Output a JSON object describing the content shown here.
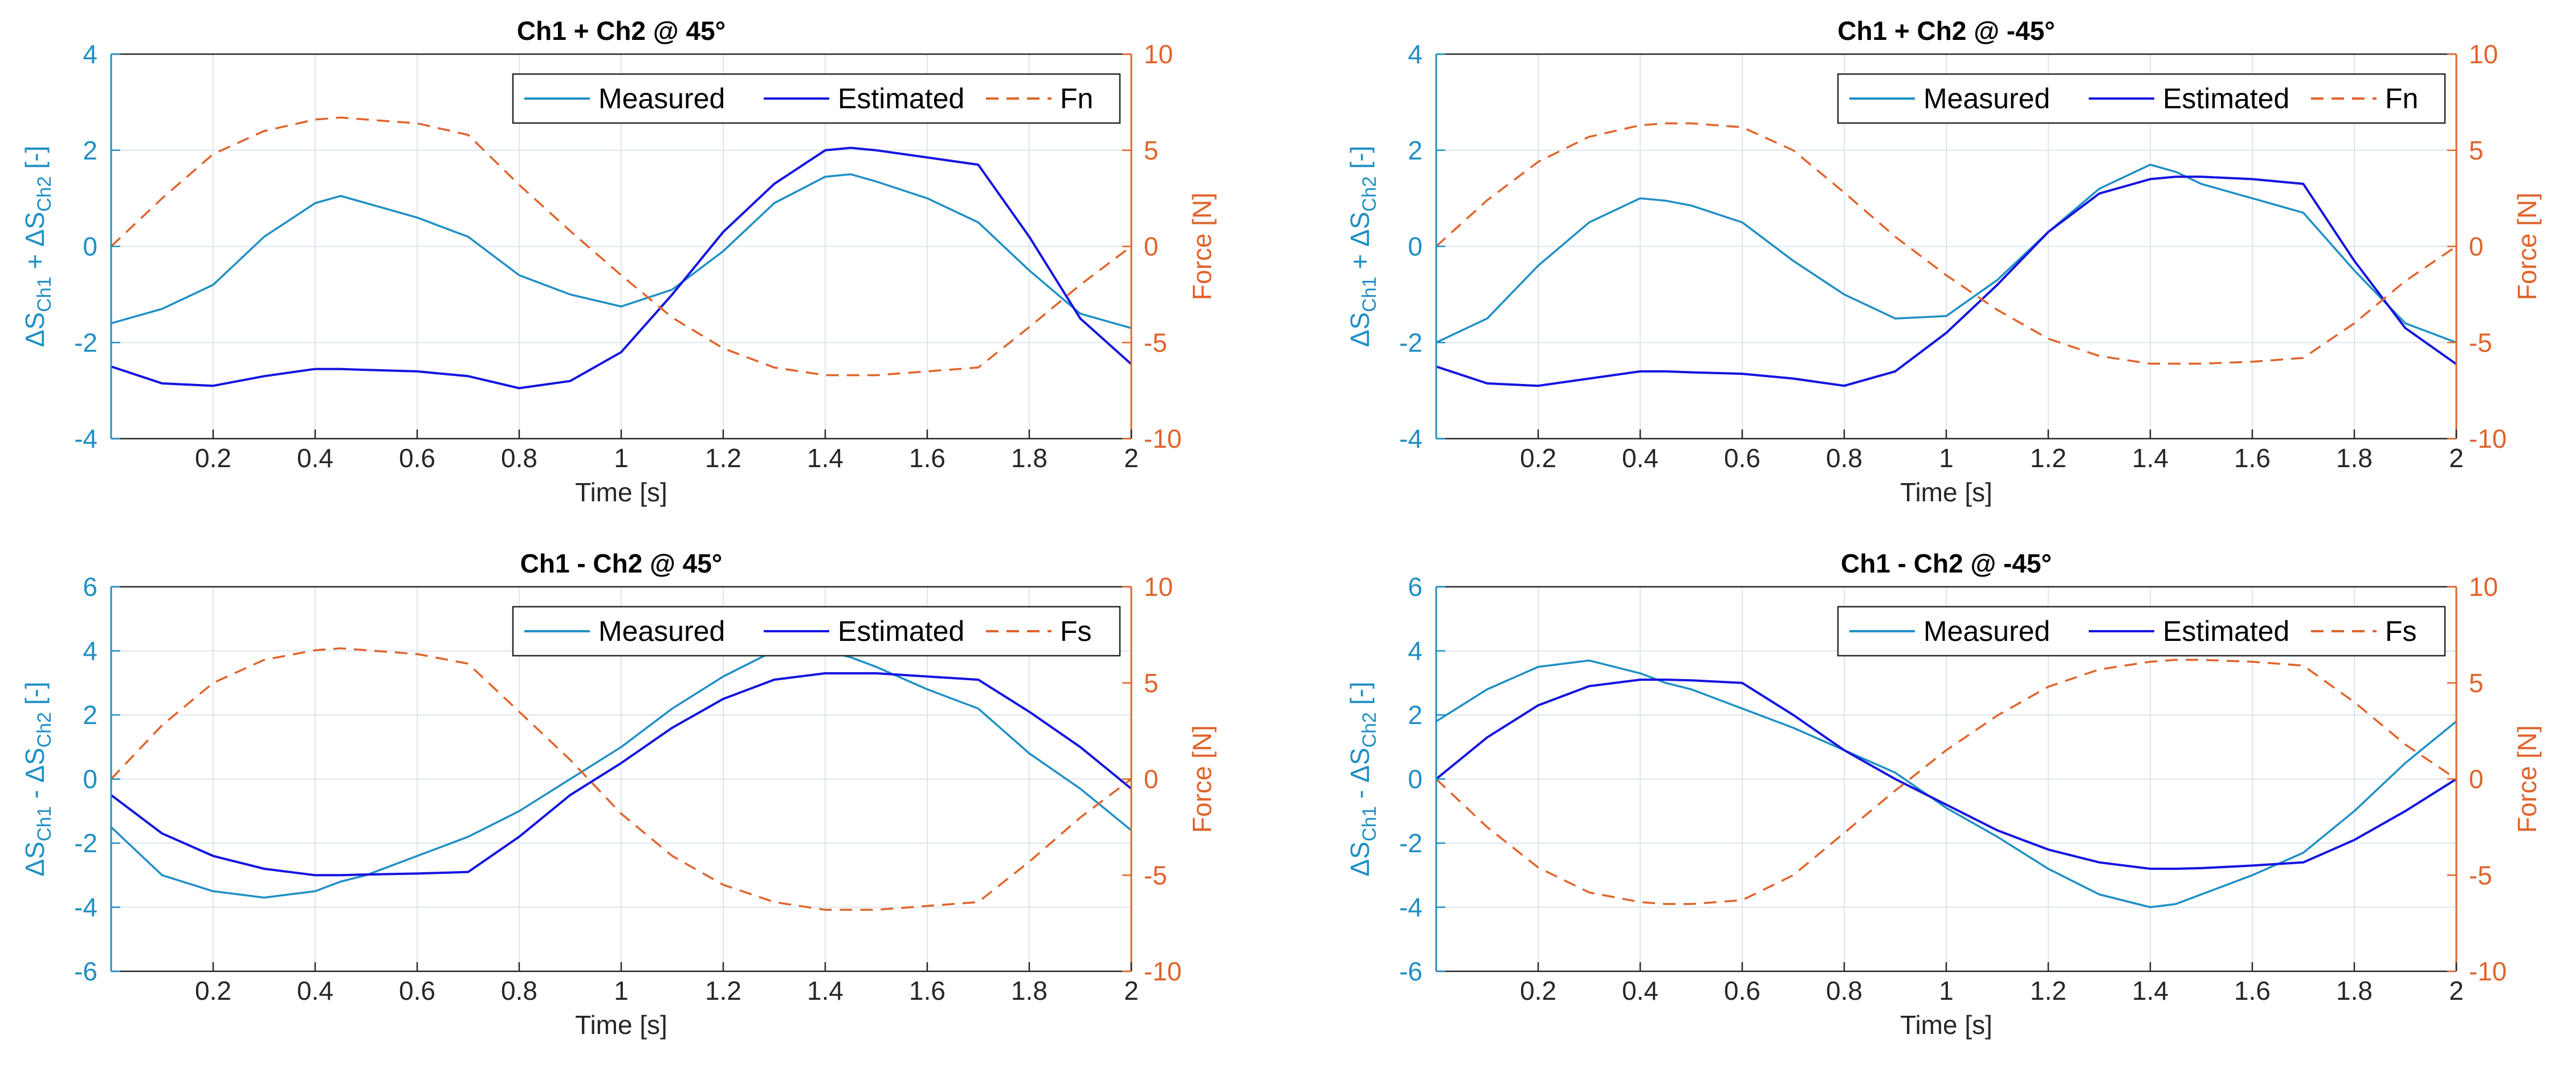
{
  "figure": {
    "series_colors": {
      "Measured": "#1f8fc4",
      "Estimated": "#1414e0",
      "force": "#e0642c"
    },
    "left_axis_color": "#1f8fc4",
    "right_axis_color": "#e0642c",
    "grid_color": "#dde6ee"
  },
  "chart_data": [
    {
      "type": "line",
      "title": "Ch1 + Ch2 @ 45°",
      "xlabel": "Time [s]",
      "ylabel_left": {
        "base1": "ΔS",
        "sub1": "Ch1",
        "op": " + ",
        "base2": "ΔS",
        "sub2": "Ch2",
        "unit": " [-]"
      },
      "ylabel_right": "Force [N]",
      "xlim": [
        0,
        2
      ],
      "ylim_left": [
        -4,
        4
      ],
      "ylim_right": [
        -10,
        10
      ],
      "xticks": [
        0.2,
        0.4,
        0.6,
        0.8,
        1,
        1.2,
        1.4,
        1.6,
        1.8,
        2
      ],
      "xtick_labels": [
        "0.2",
        "0.4",
        "0.6",
        "0.8",
        "1",
        "1.2",
        "1.4",
        "1.6",
        "1.8",
        "2"
      ],
      "yticks_left": [
        -4,
        -2,
        0,
        2,
        4
      ],
      "ytick_labels_left": [
        "-4",
        "-2",
        "0",
        "2",
        "4"
      ],
      "yticks_right": [
        -10,
        -5,
        0,
        5,
        10
      ],
      "ytick_labels_right": [
        "-10",
        "-5",
        "0",
        "5",
        "10"
      ],
      "grid": true,
      "legend": {
        "position": "top-right",
        "entries": [
          "Measured",
          "Estimated",
          "Fn"
        ]
      },
      "x": [
        0,
        0.1,
        0.2,
        0.3,
        0.4,
        0.45,
        0.5,
        0.6,
        0.7,
        0.8,
        0.9,
        1.0,
        1.1,
        1.2,
        1.3,
        1.4,
        1.45,
        1.5,
        1.6,
        1.7,
        1.8,
        1.9,
        2.0
      ],
      "series": [
        {
          "name": "Measured",
          "axis": "left",
          "style": "solid",
          "values": [
            -1.6,
            -1.3,
            -0.8,
            0.2,
            0.9,
            1.05,
            0.9,
            0.6,
            0.2,
            -0.6,
            -1.0,
            -1.25,
            -0.9,
            -0.1,
            0.9,
            1.45,
            1.5,
            1.35,
            1.0,
            0.5,
            -0.5,
            -1.4,
            -1.7
          ]
        },
        {
          "name": "Estimated",
          "axis": "left",
          "style": "solid",
          "values": [
            -2.5,
            -2.85,
            -2.9,
            -2.7,
            -2.55,
            -2.55,
            -2.57,
            -2.6,
            -2.7,
            -2.95,
            -2.8,
            -2.2,
            -1.0,
            0.3,
            1.3,
            2.0,
            2.05,
            2.0,
            1.85,
            1.7,
            0.2,
            -1.5,
            -2.45
          ]
        },
        {
          "name": "Fn",
          "axis": "right",
          "style": "dashed",
          "values": [
            0,
            2.5,
            4.8,
            6.0,
            6.6,
            6.7,
            6.6,
            6.4,
            5.8,
            3.2,
            0.8,
            -1.5,
            -3.7,
            -5.3,
            -6.3,
            -6.7,
            -6.7,
            -6.7,
            -6.5,
            -6.3,
            -4.2,
            -2.0,
            0
          ]
        }
      ]
    },
    {
      "type": "line",
      "title": "Ch1 + Ch2 @ -45°",
      "xlabel": "Time [s]",
      "ylabel_left": {
        "base1": "ΔS",
        "sub1": "Ch1",
        "op": " + ",
        "base2": "ΔS",
        "sub2": "Ch2",
        "unit": " [-]"
      },
      "ylabel_right": "Force [N]",
      "xlim": [
        0,
        2
      ],
      "ylim_left": [
        -4,
        4
      ],
      "ylim_right": [
        -10,
        10
      ],
      "xticks": [
        0.2,
        0.4,
        0.6,
        0.8,
        1,
        1.2,
        1.4,
        1.6,
        1.8,
        2
      ],
      "xtick_labels": [
        "0.2",
        "0.4",
        "0.6",
        "0.8",
        "1",
        "1.2",
        "1.4",
        "1.6",
        "1.8",
        "2"
      ],
      "yticks_left": [
        -4,
        -2,
        0,
        2,
        4
      ],
      "ytick_labels_left": [
        "-4",
        "-2",
        "0",
        "2",
        "4"
      ],
      "yticks_right": [
        -10,
        -5,
        0,
        5,
        10
      ],
      "ytick_labels_right": [
        "-10",
        "-5",
        "0",
        "5",
        "10"
      ],
      "grid": true,
      "legend": {
        "position": "top-right",
        "entries": [
          "Measured",
          "Estimated",
          "Fn"
        ]
      },
      "x": [
        0,
        0.1,
        0.2,
        0.3,
        0.4,
        0.45,
        0.5,
        0.6,
        0.7,
        0.8,
        0.9,
        1.0,
        1.1,
        1.2,
        1.3,
        1.4,
        1.45,
        1.5,
        1.6,
        1.7,
        1.8,
        1.9,
        2.0
      ],
      "series": [
        {
          "name": "Measured",
          "axis": "left",
          "style": "solid",
          "values": [
            -2.0,
            -1.5,
            -0.4,
            0.5,
            1.0,
            0.95,
            0.85,
            0.5,
            -0.3,
            -1.0,
            -1.5,
            -1.45,
            -0.7,
            0.3,
            1.2,
            1.7,
            1.55,
            1.3,
            1.0,
            0.7,
            -0.5,
            -1.6,
            -2.0
          ]
        },
        {
          "name": "Estimated",
          "axis": "left",
          "style": "solid",
          "values": [
            -2.5,
            -2.85,
            -2.9,
            -2.75,
            -2.6,
            -2.6,
            -2.62,
            -2.65,
            -2.75,
            -2.9,
            -2.6,
            -1.8,
            -0.8,
            0.3,
            1.1,
            1.4,
            1.45,
            1.45,
            1.4,
            1.3,
            -0.3,
            -1.7,
            -2.45
          ]
        },
        {
          "name": "Fn",
          "axis": "right",
          "style": "dashed",
          "values": [
            0,
            2.4,
            4.4,
            5.7,
            6.3,
            6.4,
            6.4,
            6.2,
            5.0,
            2.8,
            0.5,
            -1.5,
            -3.3,
            -4.8,
            -5.7,
            -6.1,
            -6.1,
            -6.1,
            -6.0,
            -5.8,
            -4.0,
            -1.8,
            0
          ]
        }
      ]
    },
    {
      "type": "line",
      "title": "Ch1 - Ch2 @ 45°",
      "xlabel": "Time [s]",
      "ylabel_left": {
        "base1": "ΔS",
        "sub1": "Ch1",
        "op": " - ",
        "base2": "ΔS",
        "sub2": "Ch2",
        "unit": " [-]"
      },
      "ylabel_right": "Force [N]",
      "xlim": [
        0,
        2
      ],
      "ylim_left": [
        -6,
        6
      ],
      "ylim_right": [
        -10,
        10
      ],
      "xticks": [
        0.2,
        0.4,
        0.6,
        0.8,
        1,
        1.2,
        1.4,
        1.6,
        1.8,
        2
      ],
      "xtick_labels": [
        "0.2",
        "0.4",
        "0.6",
        "0.8",
        "1",
        "1.2",
        "1.4",
        "1.6",
        "1.8",
        "2"
      ],
      "yticks_left": [
        -6,
        -4,
        -2,
        0,
        2,
        4,
        6
      ],
      "ytick_labels_left": [
        "-6",
        "-4",
        "-2",
        "0",
        "2",
        "4",
        "6"
      ],
      "yticks_right": [
        -10,
        -5,
        0,
        5,
        10
      ],
      "ytick_labels_right": [
        "-10",
        "-5",
        "0",
        "5",
        "10"
      ],
      "grid": true,
      "legend": {
        "position": "top-right",
        "entries": [
          "Measured",
          "Estimated",
          "Fs"
        ]
      },
      "x": [
        0,
        0.1,
        0.2,
        0.3,
        0.4,
        0.45,
        0.5,
        0.6,
        0.7,
        0.8,
        0.9,
        1.0,
        1.1,
        1.2,
        1.3,
        1.4,
        1.45,
        1.5,
        1.6,
        1.7,
        1.8,
        1.9,
        2.0
      ],
      "series": [
        {
          "name": "Measured",
          "axis": "left",
          "style": "solid",
          "values": [
            -1.5,
            -3.0,
            -3.5,
            -3.7,
            -3.5,
            -3.2,
            -3.0,
            -2.4,
            -1.8,
            -1.0,
            0.0,
            1.0,
            2.2,
            3.2,
            4.0,
            4.0,
            3.8,
            3.5,
            2.8,
            2.2,
            0.8,
            -0.3,
            -1.6
          ]
        },
        {
          "name": "Estimated",
          "axis": "left",
          "style": "solid",
          "values": [
            -0.5,
            -1.7,
            -2.4,
            -2.8,
            -3.0,
            -3.0,
            -2.98,
            -2.95,
            -2.9,
            -1.8,
            -0.5,
            0.5,
            1.6,
            2.5,
            3.1,
            3.3,
            3.3,
            3.3,
            3.2,
            3.1,
            2.1,
            1.0,
            -0.3
          ]
        },
        {
          "name": "Fs",
          "axis": "right",
          "style": "dashed",
          "values": [
            0,
            2.8,
            5.0,
            6.2,
            6.7,
            6.8,
            6.7,
            6.5,
            6.0,
            3.5,
            1.0,
            -1.8,
            -4.0,
            -5.5,
            -6.4,
            -6.8,
            -6.8,
            -6.8,
            -6.6,
            -6.4,
            -4.3,
            -2.0,
            0
          ]
        }
      ]
    },
    {
      "type": "line",
      "title": "Ch1 - Ch2 @ -45°",
      "xlabel": "Time [s]",
      "ylabel_left": {
        "base1": "ΔS",
        "sub1": "Ch1",
        "op": " - ",
        "base2": "ΔS",
        "sub2": "Ch2",
        "unit": " [-]"
      },
      "ylabel_right": "Force [N]",
      "xlim": [
        0,
        2
      ],
      "ylim_left": [
        -6,
        6
      ],
      "ylim_right": [
        -10,
        10
      ],
      "xticks": [
        0.2,
        0.4,
        0.6,
        0.8,
        1,
        1.2,
        1.4,
        1.6,
        1.8,
        2
      ],
      "xtick_labels": [
        "0.2",
        "0.4",
        "0.6",
        "0.8",
        "1",
        "1.2",
        "1.4",
        "1.6",
        "1.8",
        "2"
      ],
      "yticks_left": [
        -6,
        -4,
        -2,
        0,
        2,
        4,
        6
      ],
      "ytick_labels_left": [
        "-6",
        "-4",
        "-2",
        "0",
        "2",
        "4",
        "6"
      ],
      "yticks_right": [
        -10,
        -5,
        0,
        5,
        10
      ],
      "ytick_labels_right": [
        "-10",
        "-5",
        "0",
        "5",
        "10"
      ],
      "grid": true,
      "legend": {
        "position": "top-right",
        "entries": [
          "Measured",
          "Estimated",
          "Fs"
        ]
      },
      "x": [
        0,
        0.1,
        0.2,
        0.3,
        0.4,
        0.45,
        0.5,
        0.6,
        0.7,
        0.8,
        0.9,
        1.0,
        1.1,
        1.2,
        1.3,
        1.4,
        1.45,
        1.5,
        1.6,
        1.7,
        1.8,
        1.9,
        2.0
      ],
      "series": [
        {
          "name": "Measured",
          "axis": "left",
          "style": "solid",
          "values": [
            1.8,
            2.8,
            3.5,
            3.7,
            3.3,
            3.0,
            2.8,
            2.2,
            1.6,
            0.9,
            0.2,
            -0.9,
            -1.8,
            -2.8,
            -3.6,
            -4.0,
            -3.9,
            -3.6,
            -3.0,
            -2.3,
            -1.0,
            0.5,
            1.8
          ]
        },
        {
          "name": "Estimated",
          "axis": "left",
          "style": "solid",
          "values": [
            0,
            1.3,
            2.3,
            2.9,
            3.1,
            3.1,
            3.08,
            3.0,
            2.0,
            0.9,
            0.0,
            -0.8,
            -1.6,
            -2.2,
            -2.6,
            -2.8,
            -2.8,
            -2.78,
            -2.7,
            -2.6,
            -1.9,
            -1.0,
            0
          ]
        },
        {
          "name": "Fs",
          "axis": "right",
          "style": "dashed",
          "values": [
            0,
            -2.5,
            -4.6,
            -5.9,
            -6.4,
            -6.5,
            -6.5,
            -6.3,
            -5.0,
            -2.8,
            -0.6,
            1.5,
            3.3,
            4.8,
            5.7,
            6.1,
            6.2,
            6.2,
            6.1,
            5.9,
            4.0,
            1.8,
            0
          ]
        }
      ]
    }
  ]
}
